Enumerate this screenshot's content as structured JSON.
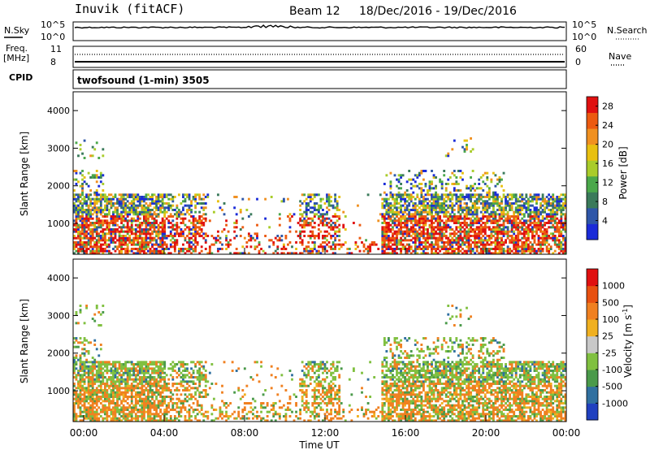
{
  "header": {
    "station": "Inuvik (fitACF)",
    "beam": "Beam 12",
    "date_range": "18/Dec/2016 - 19/Dec/2016"
  },
  "noise_panel": {
    "left_label": "N.Sky",
    "right_label": "N.Search",
    "left_ticks": [
      "10^5",
      "10^0"
    ],
    "right_ticks": [
      "10^5",
      "10^0"
    ]
  },
  "freq_panel": {
    "left_label_line1": "Freq.",
    "left_label_line2": "[MHz]",
    "left_ticks": [
      "11",
      "8"
    ],
    "right_label": "Nave",
    "right_ticks": [
      "60",
      "0"
    ]
  },
  "cpid_panel": {
    "label": "CPID",
    "program": "twofsound (1-min) 3505"
  },
  "x_axis": {
    "title": "Time UT",
    "ticks": [
      "00:00",
      "04:00",
      "08:00",
      "12:00",
      "16:00",
      "20:00",
      "00:00"
    ]
  },
  "chart_data": [
    {
      "type": "heatmap",
      "name": "power",
      "ylabel": "Slant Range [km]",
      "yticks": [
        "1000",
        "2000",
        "3000",
        "4000"
      ],
      "ylim": [
        180,
        4500
      ],
      "xlim_hours": [
        0,
        24
      ],
      "colorbar": {
        "label": "Power [dB]",
        "ticks": [
          "4",
          "8",
          "12",
          "16",
          "20",
          "24",
          "28"
        ],
        "range": [
          0,
          30
        ],
        "colors": [
          "#1a2bd8",
          "#2e56a8",
          "#3a7a5a",
          "#4aa84a",
          "#a9cc2a",
          "#e8c010",
          "#f09020",
          "#ec5a10",
          "#e01010"
        ]
      }
    },
    {
      "type": "heatmap",
      "name": "velocity",
      "ylabel": "Slant Range [km]",
      "yticks": [
        "1000",
        "2000",
        "3000",
        "4000"
      ],
      "ylim": [
        180,
        4500
      ],
      "xlim_hours": [
        0,
        24
      ],
      "colorbar": {
        "label": "Velocity [m s",
        "label_exp": "-1",
        "label_end": "]",
        "ticks": [
          "1000",
          "500",
          "100",
          "25",
          "-25",
          "-100",
          "-500",
          "-1000"
        ],
        "colors": [
          "#2040c0",
          "#3070a0",
          "#4a9a4a",
          "#80c040",
          "#c8c8c8",
          "#f0b020",
          "#f08020",
          "#e85010",
          "#e01010"
        ]
      }
    }
  ]
}
